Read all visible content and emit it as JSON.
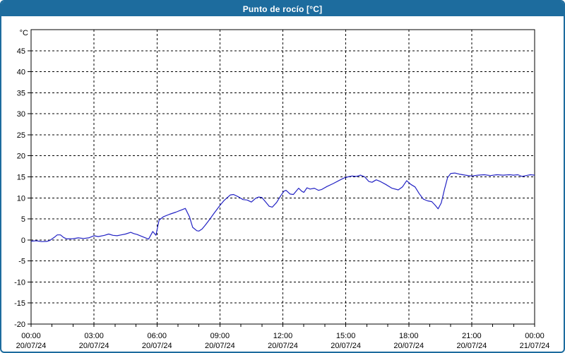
{
  "window": {
    "title": "Punto de rocío [°C]",
    "titlebar_color": "#1d6c9e",
    "border_color": "#1d6c9e",
    "background": "#ffffff"
  },
  "chart_data": {
    "type": "line",
    "title": "Punto de rocío [°C]",
    "ylabel": "°C",
    "xlabel": "",
    "grid": "dashed-black",
    "legend": "none",
    "axis_color": "#000000",
    "line_color": "#2222c4",
    "x_axis": {
      "unit": "hours",
      "range": [
        0,
        24
      ],
      "major_step_hours": 3,
      "minor_step_hours": 1,
      "tick_labels": [
        {
          "time": "00:00",
          "date": "20/07/24"
        },
        {
          "time": "03:00",
          "date": "20/07/24"
        },
        {
          "time": "06:00",
          "date": "20/07/24"
        },
        {
          "time": "09:00",
          "date": "20/07/24"
        },
        {
          "time": "12:00",
          "date": "20/07/24"
        },
        {
          "time": "15:00",
          "date": "20/07/24"
        },
        {
          "time": "18:00",
          "date": "20/07/24"
        },
        {
          "time": "21:00",
          "date": "20/07/24"
        },
        {
          "time": "00:00",
          "date": "21/07/24"
        }
      ]
    },
    "y_axis": {
      "unit": "°C",
      "range": [
        -20,
        50
      ],
      "tick_step": 5,
      "tick_labels": [
        "45",
        "40",
        "35",
        "30",
        "25",
        "20",
        "15",
        "10",
        "5",
        "0",
        "-5",
        "-10",
        "-15",
        "-20"
      ]
    },
    "series": [
      {
        "name": "Punto de rocío",
        "color": "#2222c4",
        "points": [
          [
            0.0,
            -0.3
          ],
          [
            0.25,
            -0.2
          ],
          [
            0.5,
            -0.4
          ],
          [
            0.75,
            -0.35
          ],
          [
            0.9,
            -0.1
          ],
          [
            1.1,
            0.6
          ],
          [
            1.25,
            1.2
          ],
          [
            1.4,
            1.2
          ],
          [
            1.55,
            0.6
          ],
          [
            1.7,
            0.25
          ],
          [
            2.0,
            0.3
          ],
          [
            2.25,
            0.5
          ],
          [
            2.5,
            0.35
          ],
          [
            2.75,
            0.5
          ],
          [
            3.0,
            1.0
          ],
          [
            3.2,
            0.8
          ],
          [
            3.5,
            1.1
          ],
          [
            3.7,
            1.4
          ],
          [
            3.9,
            1.1
          ],
          [
            4.1,
            1.0
          ],
          [
            4.3,
            1.2
          ],
          [
            4.5,
            1.4
          ],
          [
            4.75,
            1.8
          ],
          [
            4.9,
            1.5
          ],
          [
            5.05,
            1.3
          ],
          [
            5.4,
            0.6
          ],
          [
            5.6,
            0.2
          ],
          [
            5.8,
            2.0
          ],
          [
            5.95,
            1.1
          ],
          [
            6.1,
            4.7
          ],
          [
            6.3,
            5.5
          ],
          [
            6.6,
            6.1
          ],
          [
            6.9,
            6.6
          ],
          [
            7.1,
            7.0
          ],
          [
            7.35,
            7.5
          ],
          [
            7.55,
            5.5
          ],
          [
            7.7,
            3.0
          ],
          [
            7.9,
            2.2
          ],
          [
            8.0,
            2.1
          ],
          [
            8.15,
            2.6
          ],
          [
            8.3,
            3.5
          ],
          [
            8.5,
            4.8
          ],
          [
            8.7,
            6.2
          ],
          [
            8.85,
            7.2
          ],
          [
            9.0,
            8.2
          ],
          [
            9.2,
            9.4
          ],
          [
            9.5,
            10.7
          ],
          [
            9.65,
            10.8
          ],
          [
            9.9,
            10.2
          ],
          [
            10.1,
            9.6
          ],
          [
            10.3,
            9.5
          ],
          [
            10.5,
            9.0
          ],
          [
            10.7,
            9.9
          ],
          [
            10.85,
            10.2
          ],
          [
            11.0,
            10.1
          ],
          [
            11.2,
            8.9
          ],
          [
            11.35,
            8.0
          ],
          [
            11.5,
            7.8
          ],
          [
            11.7,
            8.9
          ],
          [
            11.9,
            10.5
          ],
          [
            12.05,
            11.6
          ],
          [
            12.15,
            11.8
          ],
          [
            12.35,
            10.9
          ],
          [
            12.5,
            10.8
          ],
          [
            12.75,
            12.3
          ],
          [
            12.9,
            11.6
          ],
          [
            13.0,
            11.3
          ],
          [
            13.15,
            12.4
          ],
          [
            13.3,
            12.1
          ],
          [
            13.5,
            12.3
          ],
          [
            13.7,
            11.8
          ],
          [
            13.85,
            12.0
          ],
          [
            14.1,
            12.7
          ],
          [
            14.4,
            13.4
          ],
          [
            14.7,
            14.2
          ],
          [
            14.9,
            14.7
          ],
          [
            15.1,
            15.0
          ],
          [
            15.3,
            15.2
          ],
          [
            15.5,
            15.1
          ],
          [
            15.7,
            15.4
          ],
          [
            15.9,
            15.0
          ],
          [
            16.1,
            13.9
          ],
          [
            16.25,
            13.7
          ],
          [
            16.45,
            14.3
          ],
          [
            16.65,
            13.9
          ],
          [
            16.9,
            13.2
          ],
          [
            17.2,
            12.3
          ],
          [
            17.5,
            11.9
          ],
          [
            17.7,
            12.6
          ],
          [
            17.9,
            14.1
          ],
          [
            18.1,
            13.2
          ],
          [
            18.3,
            12.6
          ],
          [
            18.5,
            11.0
          ],
          [
            18.7,
            9.7
          ],
          [
            18.9,
            9.3
          ],
          [
            19.1,
            9.1
          ],
          [
            19.25,
            8.3
          ],
          [
            19.4,
            7.4
          ],
          [
            19.55,
            8.8
          ],
          [
            19.7,
            12.0
          ],
          [
            19.85,
            14.8
          ],
          [
            20.0,
            15.8
          ],
          [
            20.2,
            15.9
          ],
          [
            20.45,
            15.6
          ],
          [
            20.7,
            15.4
          ],
          [
            21.0,
            15.2
          ],
          [
            21.3,
            15.4
          ],
          [
            21.6,
            15.5
          ],
          [
            21.9,
            15.3
          ],
          [
            22.2,
            15.5
          ],
          [
            22.5,
            15.4
          ],
          [
            22.8,
            15.5
          ],
          [
            23.0,
            15.4
          ],
          [
            23.2,
            15.5
          ],
          [
            23.4,
            15.1
          ],
          [
            23.6,
            15.3
          ],
          [
            23.8,
            15.5
          ],
          [
            24.0,
            15.4
          ]
        ]
      }
    ]
  }
}
